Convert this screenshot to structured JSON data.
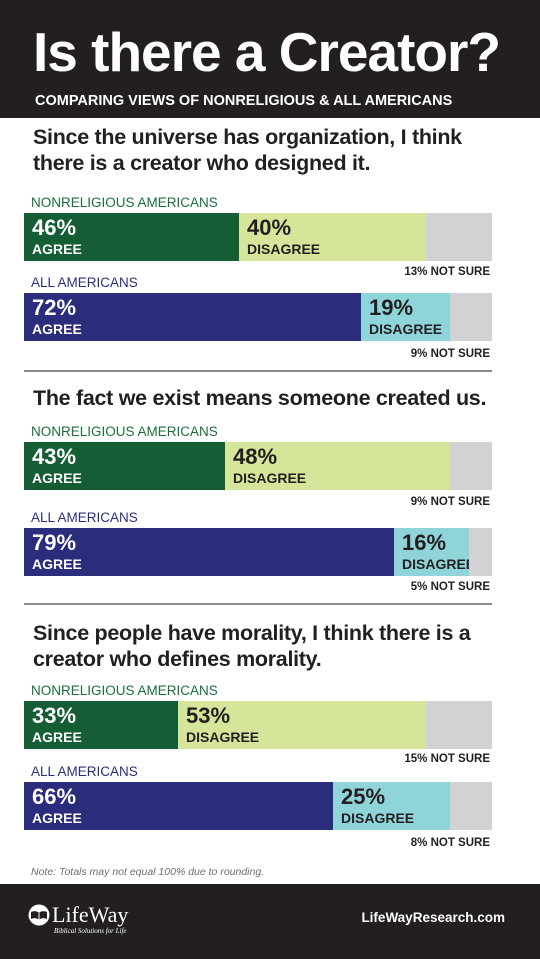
{
  "header": {
    "title": "Is there a Creator?",
    "subtitle": "COMPARING VIEWS OF NONRELIGIOUS & ALL AMERICANS"
  },
  "colors": {
    "nonreligious_agree": "#155e35",
    "nonreligious_disagree": "#d5e59a",
    "all_agree": "#2b2c7c",
    "all_disagree": "#8fd4d9",
    "not_sure": "#d1d2d4"
  },
  "chart_data": [
    {
      "type": "bar",
      "title": "Since the universe has organization, I think there is a creator who designed it.",
      "stacked": true,
      "orientation": "horizontal",
      "groups": [
        {
          "name": "NONRELIGIOUS AMERICANS",
          "agree": 46,
          "disagree": 40,
          "not_sure": 13,
          "agree_label": "46%",
          "agree_text": "AGREE",
          "disagree_label": "40%",
          "disagree_text": "DISAGREE",
          "not_sure_label": "13% NOT SURE"
        },
        {
          "name": "ALL AMERICANS",
          "agree": 72,
          "disagree": 19,
          "not_sure": 9,
          "agree_label": "72%",
          "agree_text": "AGREE",
          "disagree_label": "19%",
          "disagree_text": "DISAGREE",
          "not_sure_label": "9% NOT SURE"
        }
      ]
    },
    {
      "type": "bar",
      "title": "The fact we exist means someone created us.",
      "stacked": true,
      "orientation": "horizontal",
      "groups": [
        {
          "name": "NONRELIGIOUS AMERICANS",
          "agree": 43,
          "disagree": 48,
          "not_sure": 9,
          "agree_label": "43%",
          "agree_text": "AGREE",
          "disagree_label": "48%",
          "disagree_text": "DISAGREE",
          "not_sure_label": "9% NOT SURE"
        },
        {
          "name": "ALL AMERICANS",
          "agree": 79,
          "disagree": 16,
          "not_sure": 5,
          "agree_label": "79%",
          "agree_text": "AGREE",
          "disagree_label": "16%",
          "disagree_text": "DISAGREE",
          "not_sure_label": "5% NOT SURE"
        }
      ]
    },
    {
      "type": "bar",
      "title": "Since people have morality, I think there is a creator who defines morality.",
      "stacked": true,
      "orientation": "horizontal",
      "groups": [
        {
          "name": "NONRELIGIOUS AMERICANS",
          "agree": 33,
          "disagree": 53,
          "not_sure": 15,
          "agree_label": "33%",
          "agree_text": "AGREE",
          "disagree_label": "53%",
          "disagree_text": "DISAGREE",
          "not_sure_label": "15% NOT SURE"
        },
        {
          "name": "ALL AMERICANS",
          "agree": 66,
          "disagree": 25,
          "not_sure": 8,
          "agree_label": "66%",
          "agree_text": "AGREE",
          "disagree_label": "25%",
          "disagree_text": "DISAGREE",
          "not_sure_label": "8% NOT SURE"
        }
      ]
    }
  ],
  "note": "Note: Totals may not equal 100% due to rounding.",
  "footer": {
    "logo_name": "LifeWay",
    "logo_tagline": "Biblical Solutions for Life",
    "website": "LifeWayResearch.com"
  }
}
